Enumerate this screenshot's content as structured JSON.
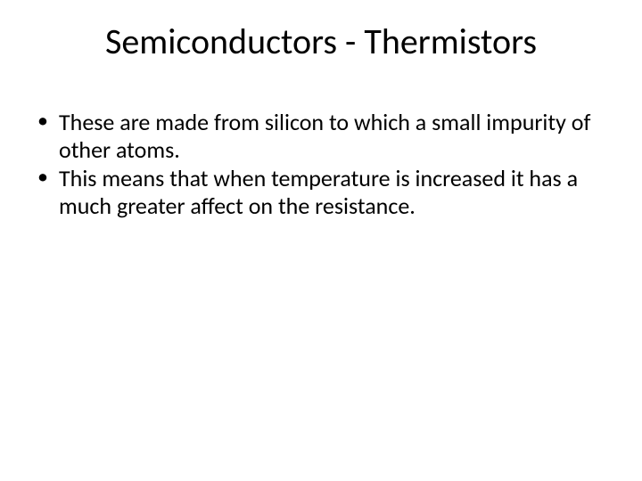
{
  "slide": {
    "title": "Semiconductors - Thermistors",
    "bullets": [
      "These are made from silicon to which a small impurity of other atoms.",
      "This means that when temperature is increased it has a much greater affect on the resistance."
    ],
    "title_fontsize": 40,
    "body_fontsize": 26,
    "text_color": "#000000",
    "background_color": "#ffffff"
  }
}
